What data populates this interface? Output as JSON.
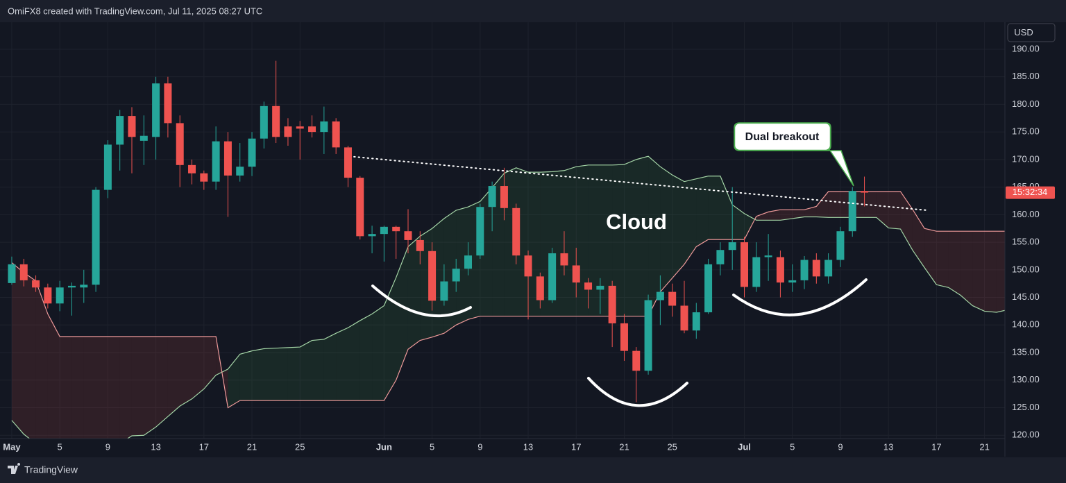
{
  "header": "OmiFX8 created with TradingView.com, Jul 11, 2025 08:27 UTC",
  "footer": "TradingView",
  "chart_data": {
    "type": "candlestick",
    "currency": "USD",
    "countdown": "15:32:34",
    "up_color": "#26a69a",
    "down_color": "#ef5350",
    "span_a_color": "#a5d6a7",
    "span_b_color": "#ef9a9a",
    "grid": true,
    "xlim": [
      -0.98,
      82.7
    ],
    "ylim": [
      119.4,
      194.9
    ],
    "yticks": [
      {
        "value": 120,
        "label": "120.00"
      },
      {
        "value": 125,
        "label": "125.00"
      },
      {
        "value": 130,
        "label": "130.00"
      },
      {
        "value": 135,
        "label": "135.00"
      },
      {
        "value": 140,
        "label": "140.00"
      },
      {
        "value": 145,
        "label": "145.00"
      },
      {
        "value": 150,
        "label": "150.00"
      },
      {
        "value": 155,
        "label": "155.00"
      },
      {
        "value": 160,
        "label": "160.00"
      },
      {
        "value": 165,
        "label": "165.00"
      },
      {
        "value": 170,
        "label": "170.00"
      },
      {
        "value": 175,
        "label": "175.00"
      },
      {
        "value": 180,
        "label": "180.00"
      },
      {
        "value": 185,
        "label": "185.00"
      },
      {
        "value": 190,
        "label": "190.00"
      }
    ],
    "categories": [
      "May",
      null,
      null,
      null,
      "5",
      null,
      null,
      null,
      "9",
      null,
      null,
      null,
      "13",
      null,
      null,
      null,
      "17",
      null,
      null,
      null,
      "21",
      null,
      null,
      null,
      "25",
      null,
      null,
      null,
      null,
      null,
      null,
      "Jun",
      null,
      null,
      null,
      "5",
      null,
      null,
      null,
      "9",
      null,
      null,
      null,
      "13",
      null,
      null,
      null,
      "17",
      null,
      null,
      null,
      "21",
      null,
      null,
      null,
      "25",
      null,
      null,
      null,
      null,
      null,
      "Jul",
      null,
      null,
      null,
      "5",
      null,
      null,
      null,
      "9",
      null,
      null,
      null,
      "13",
      null,
      null,
      null,
      "17",
      null,
      null,
      null,
      "21",
      null,
      null
    ],
    "open": [
      147.6,
      151,
      148.1,
      146.8,
      143.9,
      146.8,
      146.8,
      147.3,
      164.5,
      172.7,
      177.9,
      173.4,
      174.1,
      183.8,
      176.6,
      169,
      167.5,
      166,
      173.3,
      167.1,
      168.7,
      173.8,
      179.7,
      176,
      176,
      176,
      175,
      176.9,
      172.2,
      166.7,
      156.1,
      156.5,
      157.8,
      157,
      155.4,
      153.4,
      144.4,
      147.9,
      150.2,
      152.6,
      161.4,
      165.2,
      161.2,
      152.6,
      148.8,
      144.5,
      153,
      150.8,
      147.7,
      146.4,
      147.1,
      140.3,
      135.3,
      131.7,
      144.5,
      146,
      143.5,
      139,
      142.3,
      151,
      153.6,
      155,
      146.9,
      152.3,
      152.3,
      147.7,
      148.1,
      151.8,
      148.8,
      151.8,
      157,
      164.3,
      null,
      null,
      null,
      null,
      null,
      null,
      null,
      null,
      null,
      null,
      null,
      null
    ],
    "high": [
      152.4,
      152,
      149,
      147.5,
      148,
      147.7,
      150,
      165,
      173.5,
      179,
      179.5,
      178,
      185,
      185,
      178,
      170,
      168,
      176,
      175,
      173,
      175,
      180.5,
      187.9,
      177.5,
      177,
      178,
      179.6,
      177.5,
      172.5,
      167,
      158,
      158,
      158,
      161,
      157,
      155,
      151,
      152,
      155,
      162,
      166,
      168.5,
      162,
      153.5,
      149.5,
      154,
      157,
      154,
      148.5,
      148.5,
      148,
      142,
      136,
      145.5,
      149,
      147.5,
      148,
      144,
      152,
      155,
      165,
      156,
      155,
      156.5,
      153.5,
      151,
      152.5,
      153,
      153,
      157.8,
      165,
      166.9,
      null,
      null,
      null,
      null,
      null,
      null,
      null,
      null,
      null,
      null,
      null,
      null
    ],
    "low": [
      147.3,
      147,
      146,
      143,
      142.5,
      141.7,
      144,
      146,
      163,
      168,
      167.5,
      169,
      170,
      174,
      165,
      165.5,
      164.5,
      164.5,
      159.6,
      166,
      167,
      172,
      173,
      172.5,
      170,
      174,
      171,
      171,
      165,
      155.5,
      153,
      151.5,
      152,
      153,
      151,
      142.6,
      143.5,
      146,
      149,
      152,
      157,
      159,
      151,
      141,
      143,
      144,
      149,
      145,
      143,
      142,
      136,
      133.5,
      126,
      131,
      140,
      141.5,
      138.5,
      137.5,
      142,
      149,
      150,
      145,
      146,
      148,
      145,
      146,
      146.5,
      147.5,
      147.5,
      150.5,
      156,
      161.5,
      null,
      null,
      null,
      null,
      null,
      null,
      null,
      null,
      null,
      null,
      null,
      null
    ],
    "close": [
      151,
      148.1,
      146.8,
      143.9,
      146.8,
      147.1,
      147.3,
      164.5,
      172.7,
      177.9,
      174.1,
      174.3,
      183.8,
      176.6,
      169,
      167.5,
      166,
      173.3,
      167.1,
      168.7,
      173.8,
      179.7,
      174.1,
      174.1,
      175.6,
      175,
      176.9,
      172.2,
      166.7,
      156.1,
      156.5,
      157.8,
      157,
      155.4,
      153.4,
      144.4,
      147.9,
      150.2,
      152.6,
      161.4,
      165.2,
      161.2,
      152.6,
      148.8,
      144.5,
      153,
      150.8,
      147.7,
      146.4,
      147.1,
      140.3,
      135.3,
      131.7,
      144.5,
      146,
      143.5,
      139,
      142.3,
      151,
      153.6,
      155,
      146.9,
      152.3,
      152.6,
      147.7,
      148.1,
      151.8,
      148.8,
      151.8,
      157,
      164.3,
      164,
      null,
      null,
      null,
      null,
      null,
      null,
      null,
      null,
      null,
      null,
      null,
      null
    ],
    "span_a": [
      122.7,
      120.2,
      118.5,
      118.5,
      118.5,
      118.5,
      118.5,
      118.5,
      118.5,
      118.5,
      119.9,
      120,
      121.5,
      123.4,
      125.3,
      126.6,
      128.4,
      130.9,
      132,
      134.7,
      135.3,
      135.7,
      135.8,
      135.9,
      136,
      137.2,
      137.4,
      138.5,
      139.5,
      140.8,
      142,
      143.5,
      148.6,
      154.2,
      156.1,
      157.5,
      159.3,
      160.8,
      161.4,
      162.4,
      164.9,
      167.5,
      168.5,
      167.7,
      167.7,
      167.8,
      168,
      168.7,
      169,
      169,
      169,
      169.1,
      170,
      170.6,
      168.7,
      167.2,
      166,
      166.5,
      167,
      167,
      161.8,
      160.2,
      159,
      159,
      159,
      159.3,
      159.6,
      159.6,
      159.5,
      159.5,
      159.5,
      159.5,
      159.5,
      157.6,
      157.4,
      153.6,
      150.4,
      147.3,
      146.8,
      145.4,
      143.5,
      142.5,
      142.3,
      142.8
    ],
    "span_b": [
      151.3,
      149.5,
      148,
      142,
      137.9,
      137.9,
      137.9,
      137.9,
      137.9,
      137.9,
      137.9,
      137.9,
      137.9,
      137.9,
      137.9,
      137.9,
      137.9,
      137.9,
      125,
      126.3,
      126.3,
      126.3,
      126.3,
      126.3,
      126.3,
      126.3,
      126.3,
      126.3,
      126.3,
      126.3,
      126.3,
      126.3,
      130,
      135.6,
      137.2,
      137.8,
      138.5,
      140,
      141,
      141.6,
      141.6,
      141.6,
      141.6,
      141.6,
      141.6,
      141.6,
      141.6,
      141.6,
      141.6,
      141.6,
      141.6,
      141.6,
      141.6,
      141.6,
      146,
      148.5,
      151,
      154.2,
      155.5,
      155.5,
      155.5,
      155.5,
      159.7,
      160.5,
      160.9,
      160.9,
      160.9,
      161.5,
      164.2,
      164.2,
      164.2,
      164.2,
      164.2,
      164.2,
      164.2,
      161,
      157.5,
      157,
      157,
      157,
      157,
      157,
      157,
      157
    ],
    "trendline": {
      "x": [
        28.5,
        76.2
      ],
      "values": [
        170.5,
        160.8
      ]
    },
    "annotations": [
      {
        "text": "Cloud"
      },
      {
        "text": "Dual breakout"
      }
    ]
  }
}
